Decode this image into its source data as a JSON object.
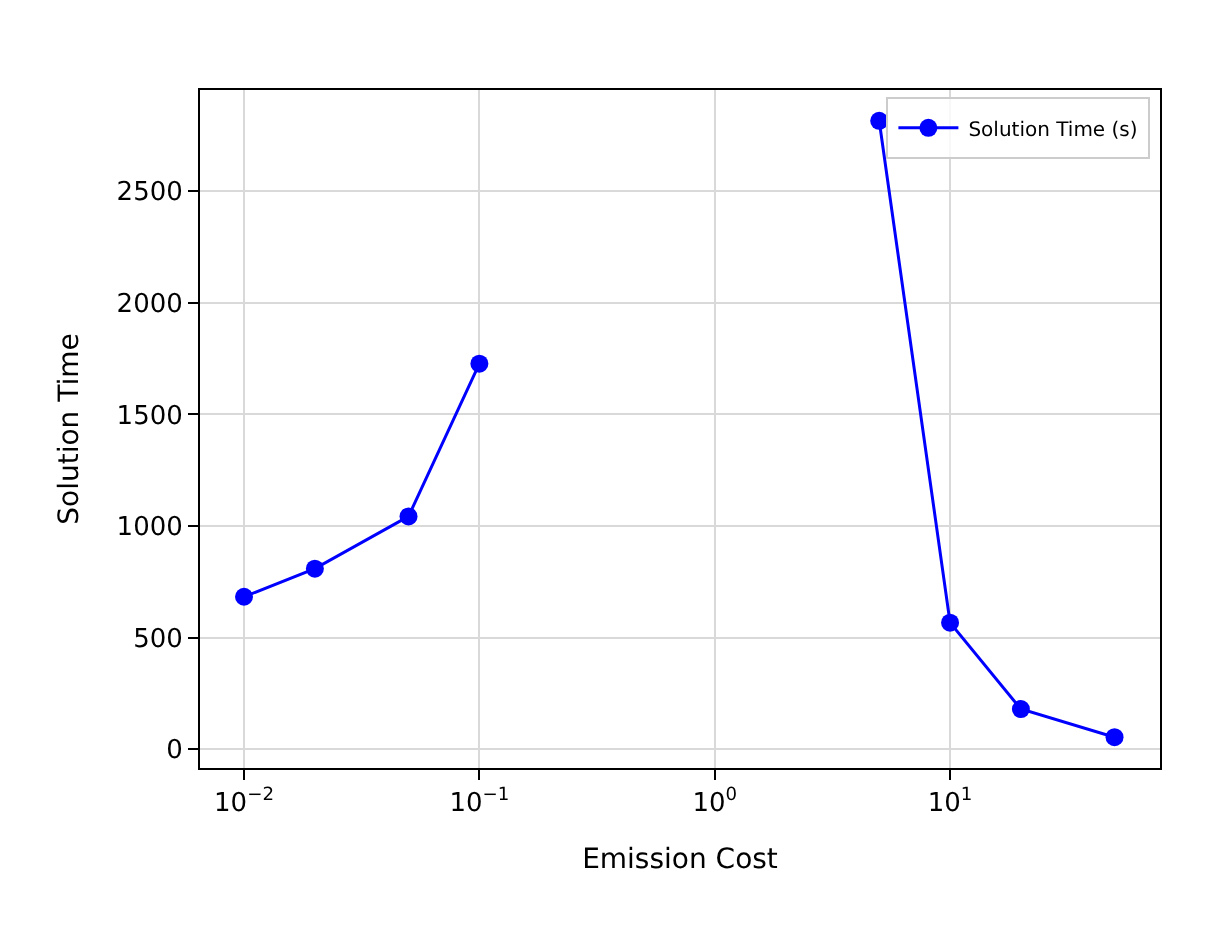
{
  "chart_data": {
    "type": "line",
    "xlabel": "Emission Cost",
    "ylabel": "Solution Time",
    "x": [
      0.01,
      0.02,
      0.05,
      0.1,
      1,
      5,
      10,
      20,
      50
    ],
    "series": [
      {
        "name": "Solution Time (s)",
        "color": "#0000ff",
        "values": [
          683,
          809,
          1043,
          1727,
          null,
          2815,
          567,
          180,
          54
        ]
      }
    ],
    "log": "x",
    "xlim": [
      0.0065,
      78
    ],
    "ylim": [
      -84,
      2953
    ],
    "xticks": [
      {
        "value": 0.01,
        "label": "10$^{−2}$"
      },
      {
        "value": 0.1,
        "label": "10$^{−1}$"
      },
      {
        "value": 1,
        "label": "10$^{0}$"
      },
      {
        "value": 10,
        "label": "10$^{1}$"
      }
    ],
    "yticks": [
      0,
      500,
      1000,
      1500,
      2000,
      2500
    ],
    "grid": true,
    "legend": "top right",
    "marker": "circle",
    "line_style": "solid"
  }
}
